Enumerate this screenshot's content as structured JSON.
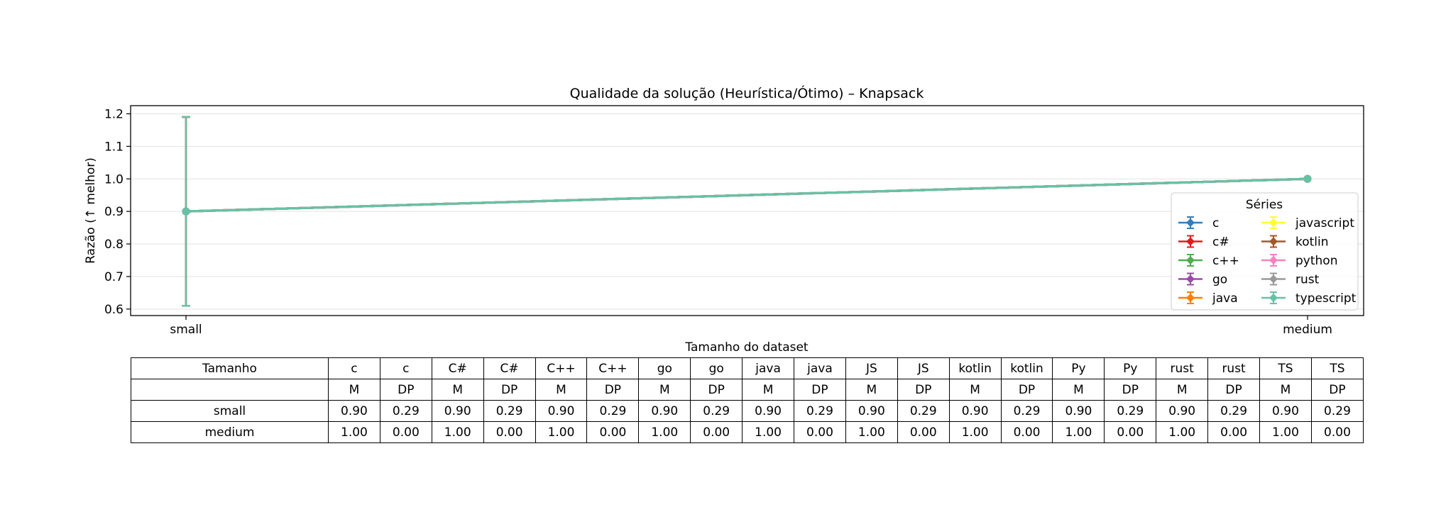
{
  "chart_data": {
    "type": "line",
    "title": "Qualidade da solução (Heurística/Ótimo) – Knapsack",
    "xlabel": "Tamanho do dataset",
    "ylabel": "Razão (↑ melhor)",
    "categories": [
      "small",
      "medium"
    ],
    "ylim": [
      0.58,
      1.225
    ],
    "yticks": [
      0.6,
      0.7,
      0.8,
      0.9,
      1.0,
      1.1,
      1.2
    ],
    "ytick_labels": [
      "0.6",
      "0.7",
      "0.8",
      "0.9",
      "1.0",
      "1.1",
      "1.2"
    ],
    "grid": "horizontal",
    "error_bars": true,
    "legend_title": "Séries",
    "legend_placement": "lower-right",
    "series": [
      {
        "name": "c",
        "color": "#377eb8",
        "values": [
          0.9,
          1.0
        ],
        "errors": [
          0.29,
          0.0
        ]
      },
      {
        "name": "c#",
        "color": "#e41a1c",
        "values": [
          0.9,
          1.0
        ],
        "errors": [
          0.29,
          0.0
        ]
      },
      {
        "name": "c++",
        "color": "#4daf4a",
        "values": [
          0.9,
          1.0
        ],
        "errors": [
          0.29,
          0.0
        ]
      },
      {
        "name": "go",
        "color": "#984ea3",
        "values": [
          0.9,
          1.0
        ],
        "errors": [
          0.29,
          0.0
        ]
      },
      {
        "name": "java",
        "color": "#ff7f00",
        "values": [
          0.9,
          1.0
        ],
        "errors": [
          0.29,
          0.0
        ]
      },
      {
        "name": "javascript",
        "color": "#ffff33",
        "values": [
          0.9,
          1.0
        ],
        "errors": [
          0.29,
          0.0
        ]
      },
      {
        "name": "kotlin",
        "color": "#a65628",
        "values": [
          0.9,
          1.0
        ],
        "errors": [
          0.29,
          0.0
        ]
      },
      {
        "name": "python",
        "color": "#f781bf",
        "values": [
          0.9,
          1.0
        ],
        "errors": [
          0.29,
          0.0
        ]
      },
      {
        "name": "rust",
        "color": "#999999",
        "values": [
          0.9,
          1.0
        ],
        "errors": [
          0.29,
          0.0
        ]
      },
      {
        "name": "typescript",
        "color": "#66c2a5",
        "values": [
          0.9,
          1.0
        ],
        "errors": [
          0.29,
          0.0
        ]
      }
    ]
  },
  "table": {
    "header1": [
      "Tamanho",
      "c",
      "c",
      "C#",
      "C#",
      "C++",
      "C++",
      "go",
      "go",
      "java",
      "java",
      "JS",
      "JS",
      "kotlin",
      "kotlin",
      "Py",
      "Py",
      "rust",
      "rust",
      "TS",
      "TS"
    ],
    "header2": [
      "",
      "M",
      "DP",
      "M",
      "DP",
      "M",
      "DP",
      "M",
      "DP",
      "M",
      "DP",
      "M",
      "DP",
      "M",
      "DP",
      "M",
      "DP",
      "M",
      "DP",
      "M",
      "DP"
    ],
    "rows": [
      [
        "small",
        "0.90",
        "0.29",
        "0.90",
        "0.29",
        "0.90",
        "0.29",
        "0.90",
        "0.29",
        "0.90",
        "0.29",
        "0.90",
        "0.29",
        "0.90",
        "0.29",
        "0.90",
        "0.29",
        "0.90",
        "0.29",
        "0.90",
        "0.29"
      ],
      [
        "medium",
        "1.00",
        "0.00",
        "1.00",
        "0.00",
        "1.00",
        "0.00",
        "1.00",
        "0.00",
        "1.00",
        "0.00",
        "1.00",
        "0.00",
        "1.00",
        "0.00",
        "1.00",
        "0.00",
        "1.00",
        "0.00",
        "1.00",
        "0.00"
      ]
    ]
  }
}
